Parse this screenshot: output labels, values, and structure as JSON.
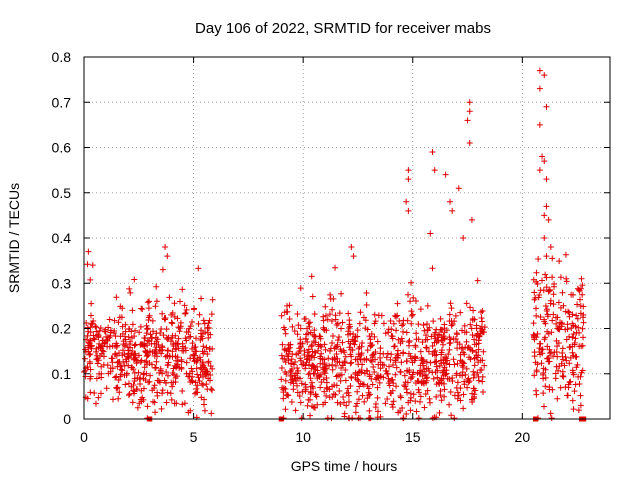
{
  "chart_data": {
    "type": "scatter",
    "title": "Day 106 of 2022, SRMTID for receiver mabs",
    "xlabel": "GPS time / hours",
    "ylabel": "SRMTID / TECUs",
    "xlim": [
      0,
      24
    ],
    "ylim": [
      0,
      0.8
    ],
    "xticks": [
      0,
      5,
      10,
      15,
      20
    ],
    "yticks": [
      0,
      0.1,
      0.2,
      0.3,
      0.4,
      0.5,
      0.6,
      0.7,
      0.8
    ],
    "xtick_labels": [
      "0",
      "5",
      "10",
      "15",
      "20"
    ],
    "ytick_labels": [
      "0",
      "0.1",
      "0.2",
      "0.3",
      "0.4",
      "0.5",
      "0.6",
      "0.7",
      "0.8"
    ],
    "grid": true,
    "marker": "+",
    "color": "#e00000",
    "segments": [
      {
        "start": 0.0,
        "end": 5.9,
        "mean": 0.14,
        "spread": 0.07
      },
      {
        "start": 9.0,
        "end": 18.3,
        "mean": 0.13,
        "spread": 0.08
      },
      {
        "start": 20.5,
        "end": 22.8,
        "mean": 0.17,
        "spread": 0.1
      }
    ],
    "notable_points": [
      {
        "x": 0.2,
        "y": 0.37
      },
      {
        "x": 0.4,
        "y": 0.34
      },
      {
        "x": 3.7,
        "y": 0.38
      },
      {
        "x": 3.8,
        "y": 0.36
      },
      {
        "x": 3.6,
        "y": 0.33
      },
      {
        "x": 12.2,
        "y": 0.38
      },
      {
        "x": 12.3,
        "y": 0.36
      },
      {
        "x": 14.8,
        "y": 0.55
      },
      {
        "x": 14.8,
        "y": 0.53
      },
      {
        "x": 14.7,
        "y": 0.48
      },
      {
        "x": 14.8,
        "y": 0.46
      },
      {
        "x": 15.9,
        "y": 0.59
      },
      {
        "x": 16.0,
        "y": 0.55
      },
      {
        "x": 16.5,
        "y": 0.54
      },
      {
        "x": 16.7,
        "y": 0.48
      },
      {
        "x": 16.8,
        "y": 0.46
      },
      {
        "x": 17.1,
        "y": 0.51
      },
      {
        "x": 17.6,
        "y": 0.7
      },
      {
        "x": 17.6,
        "y": 0.68
      },
      {
        "x": 17.5,
        "y": 0.66
      },
      {
        "x": 17.6,
        "y": 0.61
      },
      {
        "x": 17.7,
        "y": 0.44
      },
      {
        "x": 17.3,
        "y": 0.4
      },
      {
        "x": 15.8,
        "y": 0.41
      },
      {
        "x": 20.8,
        "y": 0.77
      },
      {
        "x": 21.0,
        "y": 0.76
      },
      {
        "x": 20.8,
        "y": 0.73
      },
      {
        "x": 21.1,
        "y": 0.69
      },
      {
        "x": 20.8,
        "y": 0.65
      },
      {
        "x": 20.9,
        "y": 0.58
      },
      {
        "x": 21.0,
        "y": 0.57
      },
      {
        "x": 20.8,
        "y": 0.55
      },
      {
        "x": 21.1,
        "y": 0.53
      },
      {
        "x": 21.1,
        "y": 0.47
      },
      {
        "x": 21.0,
        "y": 0.45
      },
      {
        "x": 21.2,
        "y": 0.44
      },
      {
        "x": 21.0,
        "y": 0.4
      },
      {
        "x": 21.1,
        "y": 0.36
      },
      {
        "x": 21.3,
        "y": 0.38
      },
      {
        "x": 22.0,
        "y": 0.31
      },
      {
        "x": 22.7,
        "y": 0.31
      }
    ],
    "zero_markers": [
      3.0,
      9.0,
      20.6,
      22.7,
      22.8
    ]
  }
}
